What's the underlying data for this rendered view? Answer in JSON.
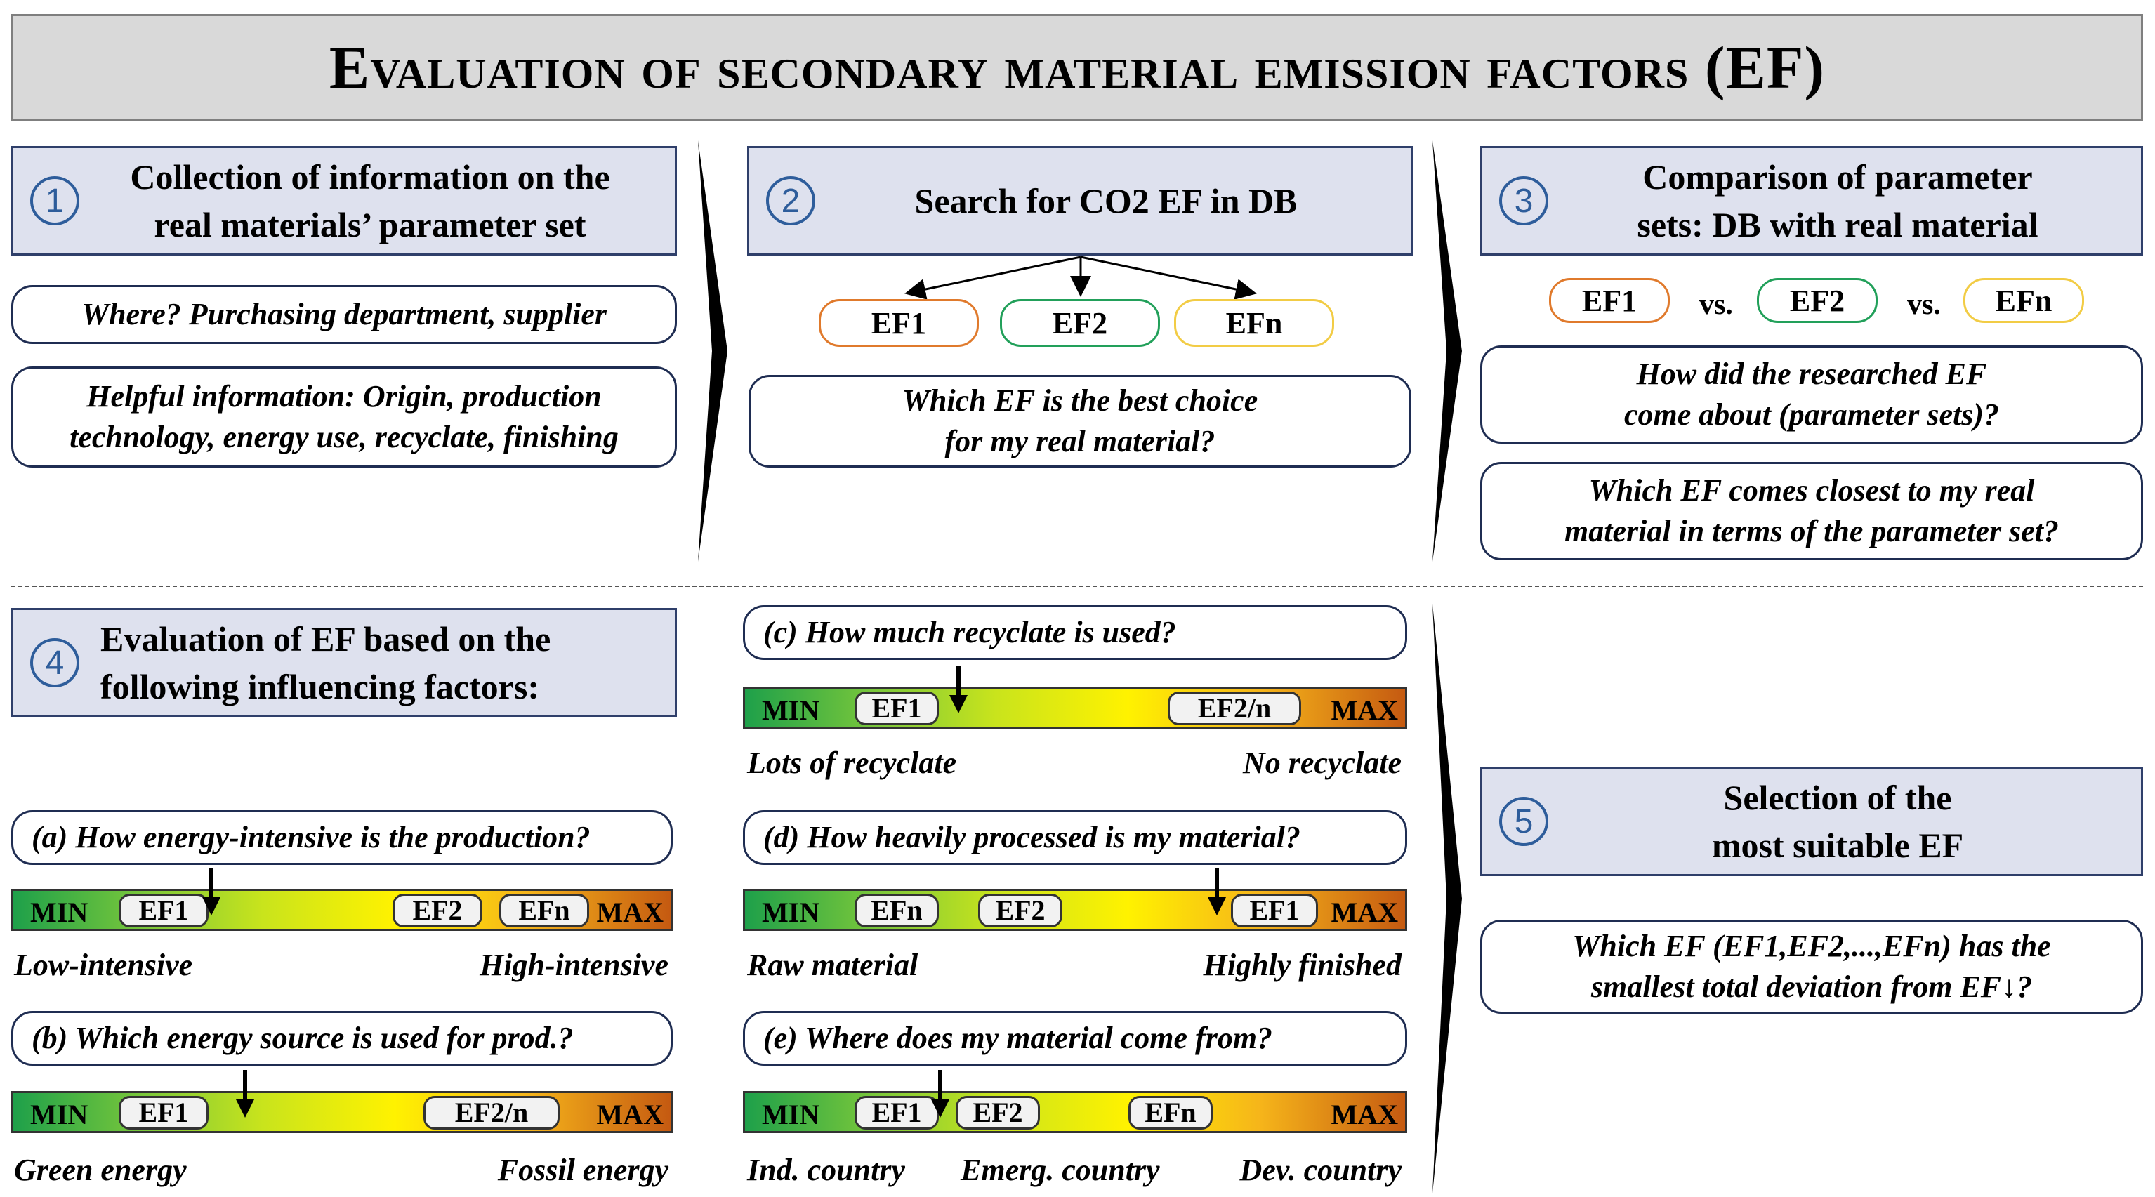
{
  "title": "Evaluation of secondary material emission factors (EF)",
  "steps": {
    "s1": {
      "num": "1",
      "line1": "Collection of information on the",
      "line2": "real materials’ parameter set"
    },
    "s2": {
      "num": "2",
      "line1": "Search for CO2 EF in DB"
    },
    "s3": {
      "num": "3",
      "line1": "Comparison of parameter",
      "line2": "sets: DB with real material"
    },
    "s4": {
      "num": "4",
      "line1": "Evaluation of EF based on the",
      "line2": "following influencing factors:"
    },
    "s5": {
      "num": "5",
      "line1": "Selection of the",
      "line2": "most suitable EF"
    }
  },
  "col1": {
    "q_where": "Where? Purchasing department, supplier",
    "q_helpful_1": "Helpful information: Origin, production",
    "q_helpful_2": "technology, energy use, recyclate, finishing"
  },
  "col2": {
    "ef1": "EF1",
    "ef2": "EF2",
    "efn": "EFn",
    "q_best_1": "Which EF is the best choice",
    "q_best_2": "for my real material?"
  },
  "col3": {
    "ef1": "EF1",
    "vs1": "vs.",
    "ef2": "EF2",
    "vs2": "vs.",
    "efn": "EFn",
    "q_how_1": "How did the researched EF",
    "q_how_2": "come about (parameter sets)?",
    "q_closest_1": "Which EF comes closest to my real",
    "q_closest_2": "material in terms of the parameter set?"
  },
  "factors": {
    "a": {
      "question": "(a) How energy-intensive is the production?",
      "min": "MIN",
      "max": "MAX",
      "marks": [
        "EF1",
        "EF2",
        "EFn"
      ],
      "low": "Low-intensive",
      "high": "High-intensive"
    },
    "b": {
      "question": "(b) Which energy source is used for prod.?",
      "min": "MIN",
      "max": "MAX",
      "marks": [
        "EF1",
        "EF2/n"
      ],
      "low": "Green energy",
      "high": "Fossil energy"
    },
    "c": {
      "question": "(c) How much recyclate is used?",
      "min": "MIN",
      "max": "MAX",
      "marks": [
        "EF1",
        "EF2/n"
      ],
      "low": "Lots of recyclate",
      "high": "No recyclate"
    },
    "d": {
      "question": "(d) How heavily processed is my material?",
      "min": "MIN",
      "max": "MAX",
      "marks": [
        "EFn",
        "EF2",
        "EF1"
      ],
      "low": "Raw material",
      "high": "Highly finished"
    },
    "e": {
      "question": "(e) Where does my material come from?",
      "min": "MIN",
      "max": "MAX",
      "marks": [
        "EF1",
        "EF2",
        "EFn"
      ],
      "low": "Ind. country",
      "mid": "Emerg. country",
      "high": "Dev. country"
    }
  },
  "col5": {
    "q_final_1": "Which EF (EF1,EF2,...,EFn) has the",
    "q_final_2": "smallest total deviation from EF↓?"
  },
  "colors": {
    "step_fill": "#dee1ee",
    "step_number": "#2e5d9b",
    "ef1_outline": "#e07a2c",
    "ef2_outline": "#22a05a",
    "efn_outline": "#f2cc45"
  }
}
